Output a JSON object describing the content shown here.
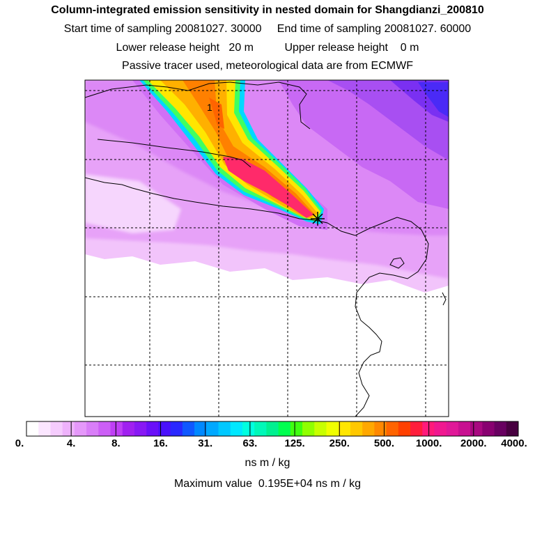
{
  "header": {
    "title": "Column-integrated emission sensitivity in nested domain for Shangdianzi_200810",
    "line2": "Start time of sampling 20081027. 30000     End time of sampling 20081027. 60000",
    "line3": "Lower release height   20 m          Upper release height    0 m",
    "line4": "Passive tracer used, meteorological data are from ECMWF"
  },
  "map": {
    "contour_label": "1",
    "marker": "release-site-star"
  },
  "colorbar": {
    "tick_labels": [
      "0.",
      "4.",
      "8.",
      "16.",
      "31.",
      "63.",
      "125.",
      "250.",
      "500.",
      "1000.",
      "2000.",
      "4000."
    ],
    "colors": [
      "#ffffff",
      "#fbe6ff",
      "#f5ccfd",
      "#eeb2fb",
      "#e598fa",
      "#d97ef8",
      "#cc5ff6",
      "#bf3ff5",
      "#a020f0",
      "#8818f4",
      "#6a10f8",
      "#4a10fc",
      "#2a28ff",
      "#1058ff",
      "#0088ff",
      "#00a8ff",
      "#00c8ff",
      "#00e8ff",
      "#00ffe0",
      "#00f8b8",
      "#00f090",
      "#00ff50",
      "#40ff10",
      "#90ff00",
      "#c8ff00",
      "#f0ff00",
      "#ffe600",
      "#ffc800",
      "#ffa800",
      "#ff8800",
      "#ff6400",
      "#ff4000",
      "#ff1e3c",
      "#ff1a7a",
      "#f01890",
      "#e01898",
      "#c81090",
      "#a80880",
      "#880070",
      "#680060",
      "#480040"
    ],
    "units": "ns m / kg"
  },
  "footer": {
    "max_value": "Maximum value  0.195E+04 ns m / kg"
  }
}
